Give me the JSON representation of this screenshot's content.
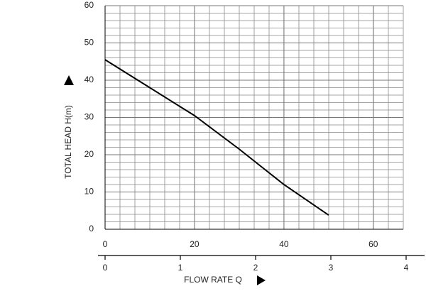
{
  "chart_data": {
    "type": "line",
    "xlabel": "FLOW RATE Q",
    "ylabel": "TOTAL HEAD H(m)",
    "x": [
      0,
      10,
      20,
      30,
      40,
      50
    ],
    "series": [
      {
        "color": "#000000",
        "values": [
          45.5,
          38,
          30.5,
          21.5,
          12,
          3.8
        ]
      }
    ],
    "xlim": [
      0,
      66.7
    ],
    "xticks": [
      0,
      20,
      40,
      60
    ],
    "ylim": [
      0,
      60
    ],
    "yticks": [
      0,
      10,
      20,
      30,
      40,
      50,
      60
    ],
    "x2lim": [
      0,
      4
    ],
    "x2ticks": [
      0,
      1,
      2,
      3,
      4
    ],
    "grid": true
  }
}
